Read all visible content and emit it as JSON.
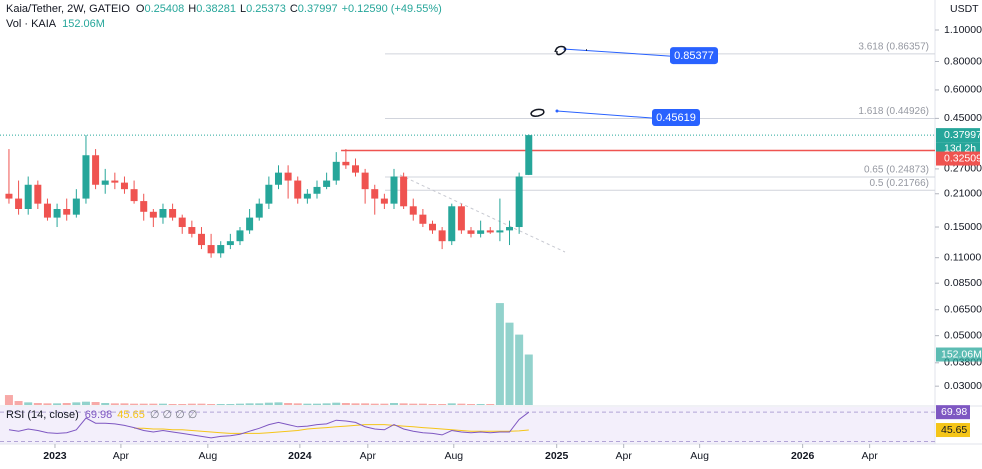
{
  "chart_data": {
    "type": "candlestick",
    "symbol": "Kaia/Tether, 2W, GATEIO",
    "ohlc_prefixes": [
      "O",
      "H",
      "L",
      "C"
    ],
    "change": "+0.12590",
    "change_pct": "(+49.55%)",
    "currency": "USDT",
    "log_scale": true,
    "up_color": "#26a69a",
    "down_color": "#ef5350",
    "ylim": [
      0.0248,
      1.49
    ],
    "yticks": [
      {
        "value": 1.1,
        "label": "1.10000"
      },
      {
        "value": 0.8,
        "label": "0.80000"
      },
      {
        "value": 0.6,
        "label": "0.60000"
      },
      {
        "value": 0.45,
        "label": "0.45000"
      },
      {
        "value": 0.27,
        "label": "0.27000"
      },
      {
        "value": 0.21,
        "label": "0.21000"
      },
      {
        "value": 0.15,
        "label": "0.15000"
      },
      {
        "value": 0.11,
        "label": "0.11000"
      },
      {
        "value": 0.085,
        "label": "0.08500"
      },
      {
        "value": 0.065,
        "label": "0.06500"
      },
      {
        "value": 0.05,
        "label": "0.05000"
      },
      {
        "value": 0.038,
        "label": "0.03800"
      },
      {
        "value": 0.03,
        "label": "0.03000"
      }
    ],
    "xlim": [
      -0.93,
      96.2
    ],
    "xticks": [
      {
        "value": 4.78,
        "label": "2023"
      },
      {
        "value": 11.63,
        "label": "Apr"
      },
      {
        "value": 20.66,
        "label": "Aug"
      },
      {
        "value": 30.22,
        "label": "2024"
      },
      {
        "value": 37.28,
        "label": "Apr"
      },
      {
        "value": 46.21,
        "label": "Aug"
      },
      {
        "value": 56.9,
        "label": "2025"
      },
      {
        "value": 63.86,
        "label": "Apr"
      },
      {
        "value": 71.75,
        "label": "Aug"
      },
      {
        "value": 82.45,
        "label": "2026"
      },
      {
        "value": 89.41,
        "label": "Apr"
      }
    ],
    "candles": {
      "open": [
        0.21,
        0.2,
        0.18,
        0.23,
        0.19,
        0.165,
        0.18,
        0.17,
        0.2,
        0.31,
        0.23,
        0.24,
        0.235,
        0.22,
        0.195,
        0.175,
        0.165,
        0.18,
        0.165,
        0.15,
        0.14,
        0.125,
        0.115,
        0.125,
        0.13,
        0.145,
        0.165,
        0.19,
        0.23,
        0.26,
        0.24,
        0.2,
        0.21,
        0.225,
        0.24,
        0.29,
        0.28,
        0.26,
        0.22,
        0.2,
        0.19,
        0.25,
        0.185,
        0.17,
        0.155,
        0.145,
        0.13,
        0.185,
        0.145,
        0.14,
        0.145,
        0.142,
        0.145,
        0.15,
        0.25408
      ],
      "high": [
        0.33,
        0.24,
        0.25,
        0.24,
        0.2,
        0.19,
        0.2,
        0.22,
        0.38,
        0.33,
        0.27,
        0.26,
        0.25,
        0.24,
        0.21,
        0.18,
        0.19,
        0.19,
        0.17,
        0.16,
        0.15,
        0.14,
        0.13,
        0.14,
        0.15,
        0.18,
        0.2,
        0.25,
        0.28,
        0.28,
        0.25,
        0.22,
        0.24,
        0.26,
        0.32,
        0.33,
        0.3,
        0.27,
        0.23,
        0.21,
        0.27,
        0.26,
        0.2,
        0.18,
        0.16,
        0.15,
        0.19,
        0.19,
        0.15,
        0.16,
        0.15,
        0.2,
        0.16,
        0.26,
        0.38281
      ],
      "low": [
        0.19,
        0.17,
        0.17,
        0.18,
        0.16,
        0.15,
        0.16,
        0.165,
        0.19,
        0.22,
        0.21,
        0.22,
        0.21,
        0.19,
        0.16,
        0.15,
        0.155,
        0.16,
        0.14,
        0.135,
        0.12,
        0.11,
        0.11,
        0.12,
        0.125,
        0.14,
        0.16,
        0.18,
        0.22,
        0.2,
        0.19,
        0.19,
        0.2,
        0.22,
        0.23,
        0.27,
        0.25,
        0.19,
        0.17,
        0.18,
        0.18,
        0.18,
        0.16,
        0.15,
        0.14,
        0.12,
        0.125,
        0.14,
        0.135,
        0.135,
        0.14,
        0.13,
        0.125,
        0.14,
        0.25373
      ],
      "close": [
        0.2,
        0.18,
        0.23,
        0.19,
        0.165,
        0.18,
        0.17,
        0.2,
        0.31,
        0.23,
        0.24,
        0.235,
        0.22,
        0.195,
        0.175,
        0.165,
        0.18,
        0.165,
        0.15,
        0.14,
        0.125,
        0.115,
        0.125,
        0.13,
        0.145,
        0.165,
        0.19,
        0.23,
        0.26,
        0.24,
        0.2,
        0.21,
        0.225,
        0.24,
        0.29,
        0.28,
        0.26,
        0.22,
        0.2,
        0.19,
        0.25,
        0.185,
        0.17,
        0.155,
        0.145,
        0.13,
        0.185,
        0.145,
        0.14,
        0.145,
        0.142,
        0.145,
        0.15,
        0.25,
        0.37997
      ]
    },
    "countdown": "13d 2h",
    "resistance": 0.32509,
    "levels": [
      {
        "label": "3.618 (0.86357)",
        "value": 0.86357
      },
      {
        "label": "1.618 (0.44926)",
        "value": 0.44926
      },
      {
        "label": "0.65 (0.24873)",
        "value": 0.24873
      },
      {
        "label": "0.5 (0.21766)",
        "value": 0.21766
      }
    ],
    "callouts": [
      0.85377,
      0.45619
    ],
    "volume": {
      "name": "Vol · KAIA",
      "last_label": "152.06M",
      "vlim": [
        0,
        500
      ],
      "values": [
        30,
        12,
        8,
        6,
        5,
        5,
        6,
        8,
        10,
        9,
        6,
        5,
        5,
        4,
        4,
        4,
        4,
        3,
        3,
        4,
        4,
        3,
        3,
        3,
        4,
        5,
        5,
        7,
        8,
        6,
        5,
        4,
        4,
        5,
        7,
        6,
        5,
        5,
        4,
        4,
        6,
        5,
        4,
        4,
        3,
        3,
        5,
        4,
        3,
        3,
        3,
        307,
        248,
        212,
        152.06
      ]
    },
    "rsi": {
      "name": "RSI (14, close)",
      "empty": "∅ ∅ ∅ ∅",
      "color": "#7e57c2",
      "ma_color": "#f5c518",
      "rlim": [
        28,
        77
      ],
      "bands": [
        30,
        70
      ],
      "values": [
        46,
        44,
        47,
        45,
        42,
        41,
        42,
        46,
        62,
        55,
        55,
        54,
        52,
        49,
        45,
        43,
        45,
        43,
        41,
        39,
        37,
        35,
        37,
        38,
        40,
        44,
        48,
        53,
        56,
        53,
        50,
        51,
        53,
        54,
        59,
        58,
        56,
        50,
        47,
        46,
        53,
        47,
        44,
        42,
        41,
        39,
        45,
        43,
        42,
        43,
        42,
        43,
        43,
        60,
        69.98
      ],
      "ma": [
        null,
        null,
        null,
        null,
        null,
        null,
        null,
        null,
        null,
        null,
        null,
        null,
        null,
        48,
        48,
        47,
        47,
        46,
        46,
        45,
        44,
        43,
        42,
        41,
        41,
        41,
        41,
        42,
        43,
        44,
        45,
        47,
        48,
        49,
        50,
        51,
        52,
        53,
        53,
        53,
        52,
        51,
        50,
        49,
        48,
        47,
        46,
        45,
        44,
        44,
        44,
        44,
        44,
        44.5,
        45.65
      ]
    }
  }
}
